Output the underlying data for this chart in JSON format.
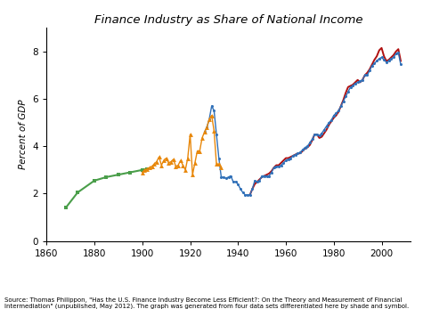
{
  "title": "Finance Industry as Share of National Income",
  "ylabel": "Percent of GDP",
  "xlim": [
    1860,
    2012
  ],
  "ylim": [
    0,
    9
  ],
  "xticks": [
    1860,
    1880,
    1900,
    1920,
    1940,
    1960,
    1980,
    2000
  ],
  "yticks": [
    0,
    2,
    4,
    6,
    8
  ],
  "source_text": "Source: Thomas Philippon, \"Has the U.S. Finance Industry Become Less Efficient?: On the Theory and Measurement of Financial\nIntermediation\" (unpublished, May 2012). The graph was generated from four data sets differentiated here by shade and symbol.",
  "green_x": [
    1868,
    1873,
    1880,
    1885,
    1890,
    1895,
    1900,
    1902
  ],
  "green_y": [
    1.4,
    2.05,
    2.55,
    2.7,
    2.8,
    2.9,
    3.0,
    3.05
  ],
  "orange_x": [
    1900,
    1901,
    1902,
    1903,
    1904,
    1905,
    1906,
    1907,
    1908,
    1909,
    1910,
    1911,
    1912,
    1913,
    1914,
    1915,
    1916,
    1917,
    1918,
    1919,
    1920,
    1921,
    1922,
    1923,
    1924,
    1925,
    1926,
    1927,
    1928,
    1929,
    1930,
    1931,
    1932,
    1933
  ],
  "orange_y": [
    2.9,
    3.0,
    3.05,
    3.1,
    3.15,
    3.25,
    3.35,
    3.55,
    3.2,
    3.4,
    3.5,
    3.3,
    3.35,
    3.45,
    3.15,
    3.2,
    3.4,
    3.2,
    3.0,
    3.5,
    4.5,
    2.8,
    3.3,
    3.8,
    3.8,
    4.35,
    4.6,
    4.8,
    5.15,
    5.3,
    4.65,
    3.25,
    3.25,
    3.1
  ],
  "blue_x": [
    1926,
    1927,
    1928,
    1929,
    1930,
    1931,
    1932,
    1933,
    1934,
    1935,
    1936,
    1937,
    1938,
    1939,
    1940,
    1941,
    1942,
    1943,
    1944,
    1945,
    1946,
    1947,
    1948,
    1949,
    1950,
    1951,
    1952,
    1953,
    1954,
    1955,
    1956,
    1957,
    1958,
    1959,
    1960,
    1961,
    1962,
    1963,
    1964,
    1965,
    1966,
    1967,
    1968,
    1969,
    1970,
    1971,
    1972,
    1973,
    1974,
    1975,
    1976,
    1977,
    1978,
    1979,
    1980,
    1981,
    1982,
    1983,
    1984,
    1985,
    1986,
    1987,
    1988,
    1989,
    1990,
    1991,
    1992,
    1993,
    1994,
    1995,
    1996,
    1997,
    1998,
    1999,
    2000,
    2001,
    2002,
    2003,
    2004,
    2005,
    2006,
    2007,
    2008
  ],
  "blue_y": [
    4.6,
    4.8,
    5.15,
    5.7,
    5.5,
    4.5,
    3.5,
    2.7,
    2.7,
    2.65,
    2.7,
    2.75,
    2.5,
    2.5,
    2.4,
    2.2,
    2.05,
    1.95,
    1.95,
    1.95,
    2.2,
    2.55,
    2.5,
    2.55,
    2.75,
    2.75,
    2.75,
    2.75,
    2.9,
    3.1,
    3.15,
    3.15,
    3.2,
    3.3,
    3.4,
    3.45,
    3.5,
    3.6,
    3.65,
    3.7,
    3.75,
    3.85,
    3.95,
    4.0,
    4.15,
    4.3,
    4.5,
    4.5,
    4.45,
    4.55,
    4.7,
    4.85,
    5.0,
    5.1,
    5.3,
    5.4,
    5.5,
    5.7,
    5.9,
    6.1,
    6.3,
    6.5,
    6.55,
    6.65,
    6.7,
    6.75,
    6.8,
    7.0,
    7.0,
    7.2,
    7.4,
    7.5,
    7.6,
    7.7,
    7.75,
    7.65,
    7.55,
    7.6,
    7.7,
    7.75,
    7.9,
    7.95,
    7.45
  ],
  "red_x": [
    1945,
    1946,
    1947,
    1948,
    1949,
    1950,
    1951,
    1952,
    1953,
    1954,
    1955,
    1956,
    1957,
    1958,
    1959,
    1960,
    1961,
    1962,
    1963,
    1964,
    1965,
    1966,
    1967,
    1968,
    1969,
    1970,
    1971,
    1972,
    1973,
    1974,
    1975,
    1976,
    1977,
    1978,
    1979,
    1980,
    1981,
    1982,
    1983,
    1984,
    1985,
    1986,
    1987,
    1988,
    1989,
    1990,
    1991,
    1992,
    1993,
    1994,
    1995,
    1996,
    1997,
    1998,
    1999,
    2000,
    2001,
    2002,
    2003,
    2004,
    2005,
    2006,
    2007,
    2008
  ],
  "red_y": [
    1.95,
    2.2,
    2.4,
    2.5,
    2.6,
    2.7,
    2.75,
    2.8,
    2.85,
    2.95,
    3.1,
    3.2,
    3.2,
    3.3,
    3.4,
    3.5,
    3.5,
    3.55,
    3.6,
    3.65,
    3.7,
    3.7,
    3.8,
    3.9,
    3.95,
    4.05,
    4.25,
    4.5,
    4.5,
    4.35,
    4.4,
    4.55,
    4.7,
    4.9,
    5.05,
    5.2,
    5.3,
    5.45,
    5.7,
    5.95,
    6.25,
    6.5,
    6.55,
    6.6,
    6.7,
    6.8,
    6.7,
    6.8,
    7.0,
    7.1,
    7.25,
    7.45,
    7.65,
    7.8,
    8.05,
    8.15,
    7.8,
    7.6,
    7.65,
    7.75,
    7.85,
    8.0,
    8.1,
    7.6
  ],
  "green_color": "#4a9e4a",
  "orange_color": "#e8870a",
  "blue_color": "#3070b8",
  "red_color": "#b01010",
  "bg_color": "#ffffff"
}
